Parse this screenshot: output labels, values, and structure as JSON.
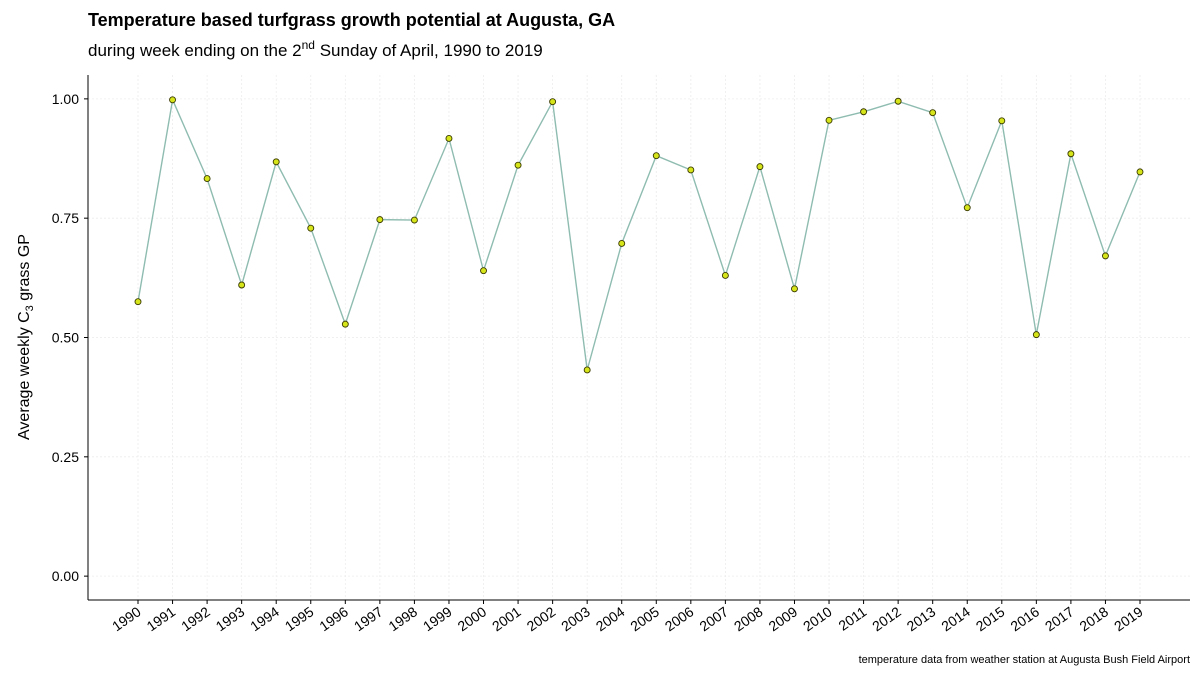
{
  "chart_data": {
    "type": "line",
    "title": "Temperature based turfgrass growth potential at Augusta, GA",
    "subtitle": {
      "prefix": "during week ending on the 2",
      "superscript": "nd",
      "suffix": " Sunday of April, 1990 to 2019"
    },
    "ylabel": {
      "prefix": "Average weekly C",
      "subscript": "3",
      "suffix": " grass GP"
    },
    "xlabel": "",
    "caption": "temperature data from weather station at Augusta Bush Field Airport",
    "ylim": [
      -0.05,
      1.05
    ],
    "yticks": [
      0.0,
      0.25,
      0.5,
      0.75,
      1.0
    ],
    "ytick_labels": [
      "0.00",
      "0.25",
      "0.50",
      "0.75",
      "1.00"
    ],
    "grid": true,
    "series": [
      {
        "x": [
          1990,
          1991,
          1992,
          1993,
          1994,
          1995,
          1996,
          1997,
          1998,
          1999,
          2000,
          2001,
          2002,
          2003,
          2004,
          2005,
          2006,
          2007,
          2008,
          2009,
          2010,
          2011,
          2012,
          2013,
          2014,
          2015,
          2016,
          2017,
          2018,
          2019
        ],
        "values": [
          0.575,
          0.998,
          0.833,
          0.61,
          0.868,
          0.729,
          0.528,
          0.747,
          0.746,
          0.917,
          0.64,
          0.861,
          0.994,
          0.432,
          0.697,
          0.881,
          0.851,
          0.63,
          0.858,
          0.602,
          0.955,
          0.973,
          0.995,
          0.971,
          0.772,
          0.954,
          0.506,
          0.885,
          0.671,
          0.847
        ]
      }
    ],
    "colors": {
      "line": "#8fbcb0",
      "point_fill": "#d6e51a",
      "point_stroke": "#3a3a00",
      "grid": "#ececec",
      "axis": "#000000"
    }
  }
}
